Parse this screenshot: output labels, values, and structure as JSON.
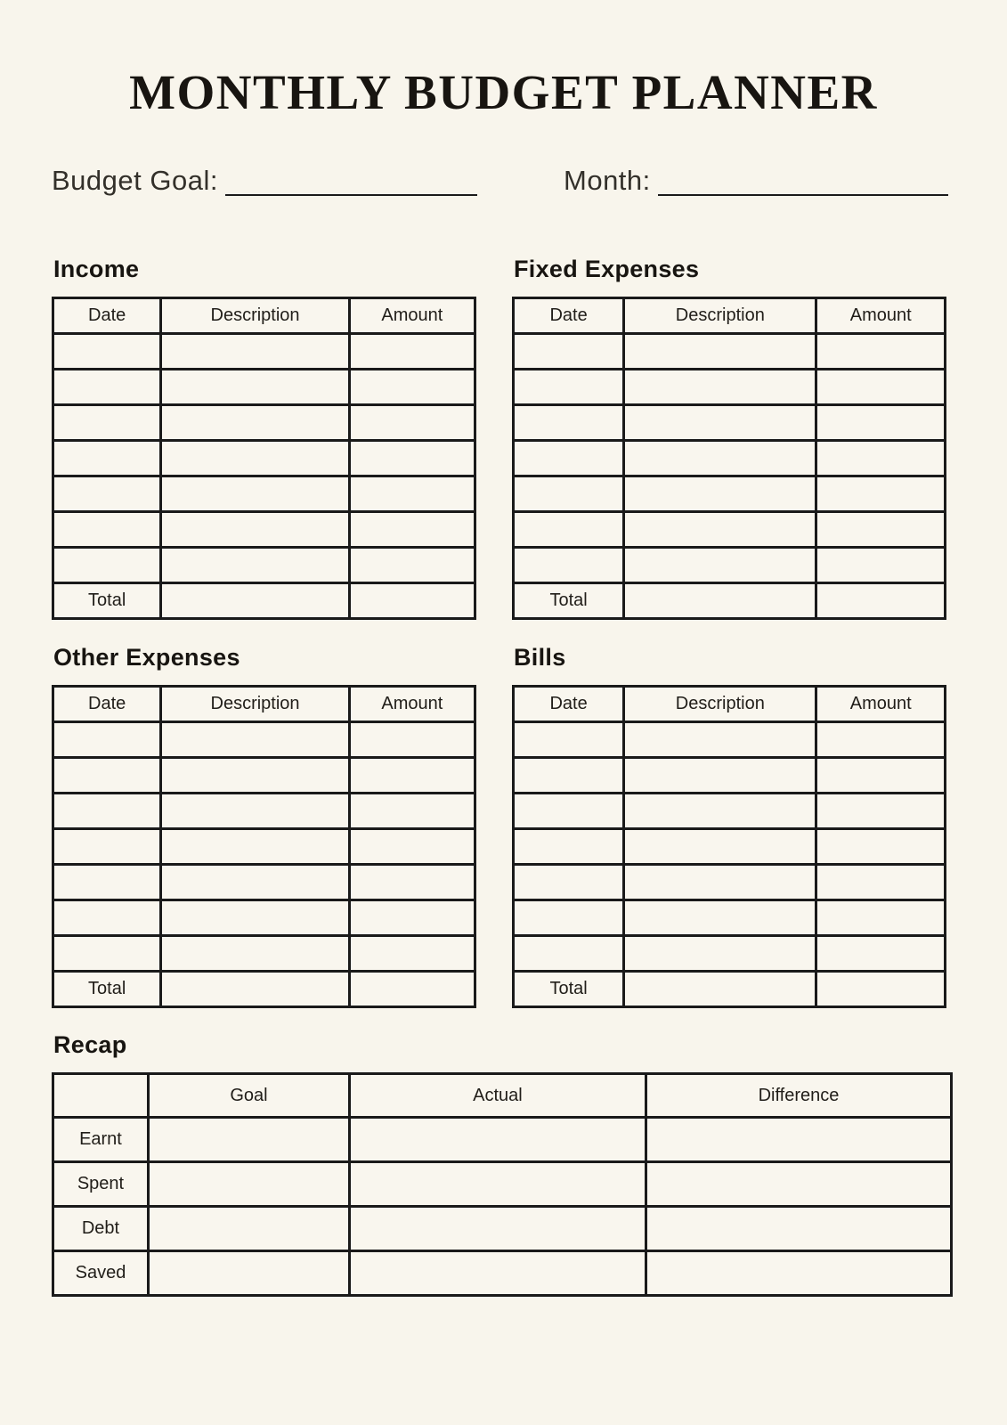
{
  "page": {
    "title": "MONTHLY BUDGET PLANNER"
  },
  "colors": {
    "background": "#f8f5ec",
    "ink": "#1a1a1a"
  },
  "fields": {
    "budget_goal": {
      "label": "Budget Goal:",
      "value": ""
    },
    "month": {
      "label": "Month:",
      "value": ""
    }
  },
  "tables": {
    "income": {
      "heading": "Income",
      "columns": [
        "Date",
        "Description",
        "Amount"
      ],
      "rows": [
        [
          "",
          "",
          ""
        ],
        [
          "",
          "",
          ""
        ],
        [
          "",
          "",
          ""
        ],
        [
          "",
          "",
          ""
        ],
        [
          "",
          "",
          ""
        ],
        [
          "",
          "",
          ""
        ],
        [
          "",
          "",
          ""
        ],
        [
          "Total",
          "",
          ""
        ]
      ]
    },
    "fixed_expenses": {
      "heading": "Fixed Expenses",
      "columns": [
        "Date",
        "Description",
        "Amount"
      ],
      "rows": [
        [
          "",
          "",
          ""
        ],
        [
          "",
          "",
          ""
        ],
        [
          "",
          "",
          ""
        ],
        [
          "",
          "",
          ""
        ],
        [
          "",
          "",
          ""
        ],
        [
          "",
          "",
          ""
        ],
        [
          "",
          "",
          ""
        ],
        [
          "Total",
          "",
          ""
        ]
      ]
    },
    "other_expenses": {
      "heading": "Other Expenses",
      "columns": [
        "Date",
        "Description",
        "Amount"
      ],
      "rows": [
        [
          "",
          "",
          ""
        ],
        [
          "",
          "",
          ""
        ],
        [
          "",
          "",
          ""
        ],
        [
          "",
          "",
          ""
        ],
        [
          "",
          "",
          ""
        ],
        [
          "",
          "",
          ""
        ],
        [
          "",
          "",
          ""
        ],
        [
          "Total",
          "",
          ""
        ]
      ]
    },
    "bills": {
      "heading": "Bills",
      "columns": [
        "Date",
        "Description",
        "Amount"
      ],
      "rows": [
        [
          "",
          "",
          ""
        ],
        [
          "",
          "",
          ""
        ],
        [
          "",
          "",
          ""
        ],
        [
          "",
          "",
          ""
        ],
        [
          "",
          "",
          ""
        ],
        [
          "",
          "",
          ""
        ],
        [
          "",
          "",
          ""
        ],
        [
          "Total",
          "",
          ""
        ]
      ]
    },
    "recap": {
      "heading": "Recap",
      "columns": [
        "",
        "Goal",
        "Actual",
        "Difference"
      ],
      "rows": [
        [
          "Earnt",
          "",
          "",
          ""
        ],
        [
          "Spent",
          "",
          "",
          ""
        ],
        [
          "Debt",
          "",
          "",
          ""
        ],
        [
          "Saved",
          "",
          "",
          ""
        ]
      ]
    }
  }
}
